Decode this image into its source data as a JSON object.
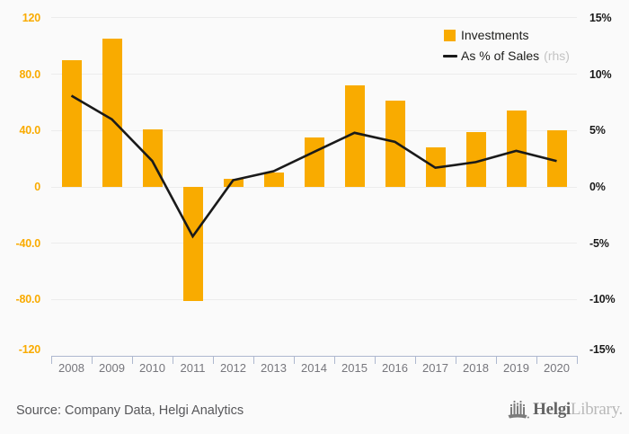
{
  "chart_data": {
    "type": "bar+line",
    "title": "",
    "categories": [
      "2008",
      "2009",
      "2010",
      "2011",
      "2012",
      "2013",
      "2014",
      "2015",
      "2016",
      "2017",
      "2018",
      "2019",
      "2020"
    ],
    "series": [
      {
        "name": "Investments",
        "type": "bar",
        "axis": "left",
        "values": [
          90,
          105,
          41,
          -81,
          6,
          10,
          35,
          72,
          61,
          28,
          39,
          54,
          40
        ]
      },
      {
        "name": "As % of Sales",
        "type": "line",
        "axis": "right",
        "values_pct": [
          8.1,
          6.0,
          2.3,
          -4.4,
          0.6,
          1.4,
          3.1,
          4.8,
          4.0,
          1.7,
          2.2,
          3.2,
          2.3
        ]
      }
    ],
    "left_axis": {
      "ylim": [
        -120,
        120
      ],
      "ticks": [
        {
          "label": "120",
          "value": 120
        },
        {
          "label": "80.0",
          "value": 80
        },
        {
          "label": "40.0",
          "value": 40
        },
        {
          "label": "0",
          "value": 0
        },
        {
          "label": "-40.0",
          "value": -40
        },
        {
          "label": "-80.0",
          "value": -80
        },
        {
          "label": "-120",
          "value": -120
        }
      ]
    },
    "right_axis": {
      "ylim_pct": [
        -15,
        15
      ],
      "ticks": [
        {
          "label": "15%",
          "value": 15
        },
        {
          "label": "10%",
          "value": 10
        },
        {
          "label": "5%",
          "value": 5
        },
        {
          "label": "0%",
          "value": 0
        },
        {
          "label": "-5%",
          "value": -5
        },
        {
          "label": "-10%",
          "value": -10
        },
        {
          "label": "-15%",
          "value": -15
        }
      ]
    },
    "grid": true,
    "legend_position": "top-right",
    "bar_color": "#f9ab00",
    "line_color": "#1a1a1a"
  },
  "legend": {
    "items": [
      {
        "label": "Investments"
      },
      {
        "label": "As % of Sales",
        "suffix": "(rhs)"
      }
    ]
  },
  "footer": {
    "source": "Source: Company Data, Helgi Analytics",
    "logo": {
      "bold": "Helgi",
      "light": "Library."
    }
  },
  "theme": {
    "background": "#fafafa",
    "accent_orange": "#f9ab00",
    "line_black": "#1a1a1a",
    "axis_line": "#aeb8cf",
    "grid_line": "#ececec"
  }
}
